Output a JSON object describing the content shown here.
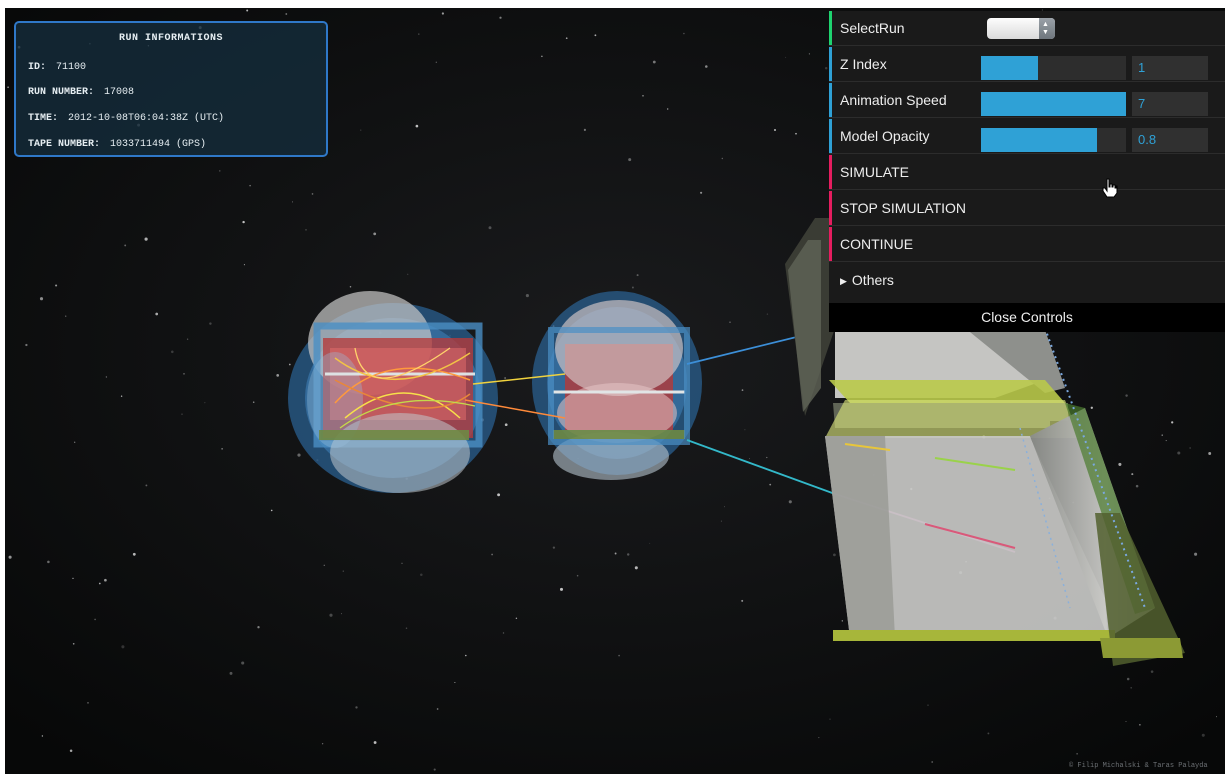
{
  "run_info": {
    "title": "RUN INFORMATIONS",
    "id_label": "ID:",
    "id_value": "71100",
    "run_number_label": "RUN NUMBER:",
    "run_number_value": "17008",
    "time_label": "TIME:",
    "time_value": "2012-10-08T06:04:38Z (UTC)",
    "tape_number_label": "TAPE NUMBER:",
    "tape_number_value": "1033711494 (GPS)"
  },
  "controls": {
    "select_run": {
      "label": "SelectRun",
      "selected": ""
    },
    "z_index": {
      "label": "Z Index",
      "value": "1",
      "fraction": 0.39
    },
    "animation_speed": {
      "label": "Animation Speed",
      "value": "7",
      "fraction": 1.0
    },
    "model_opacity": {
      "label": "Model Opacity",
      "value": "0.8",
      "fraction": 0.8
    },
    "simulate_label": "SIMULATE",
    "stop_simulation_label": "STOP SIMULATION",
    "continue_label": "CONTINUE",
    "others_label": "Others",
    "close_controls_label": "Close Controls"
  },
  "colors": {
    "folder_bar": "#1ed36f",
    "slider_bar": "#2fa1d6",
    "button_bar": "#e61d5f",
    "slider_fill": "#2fa1d6"
  },
  "credit": "© Filip Michalski & Taras Palayda"
}
